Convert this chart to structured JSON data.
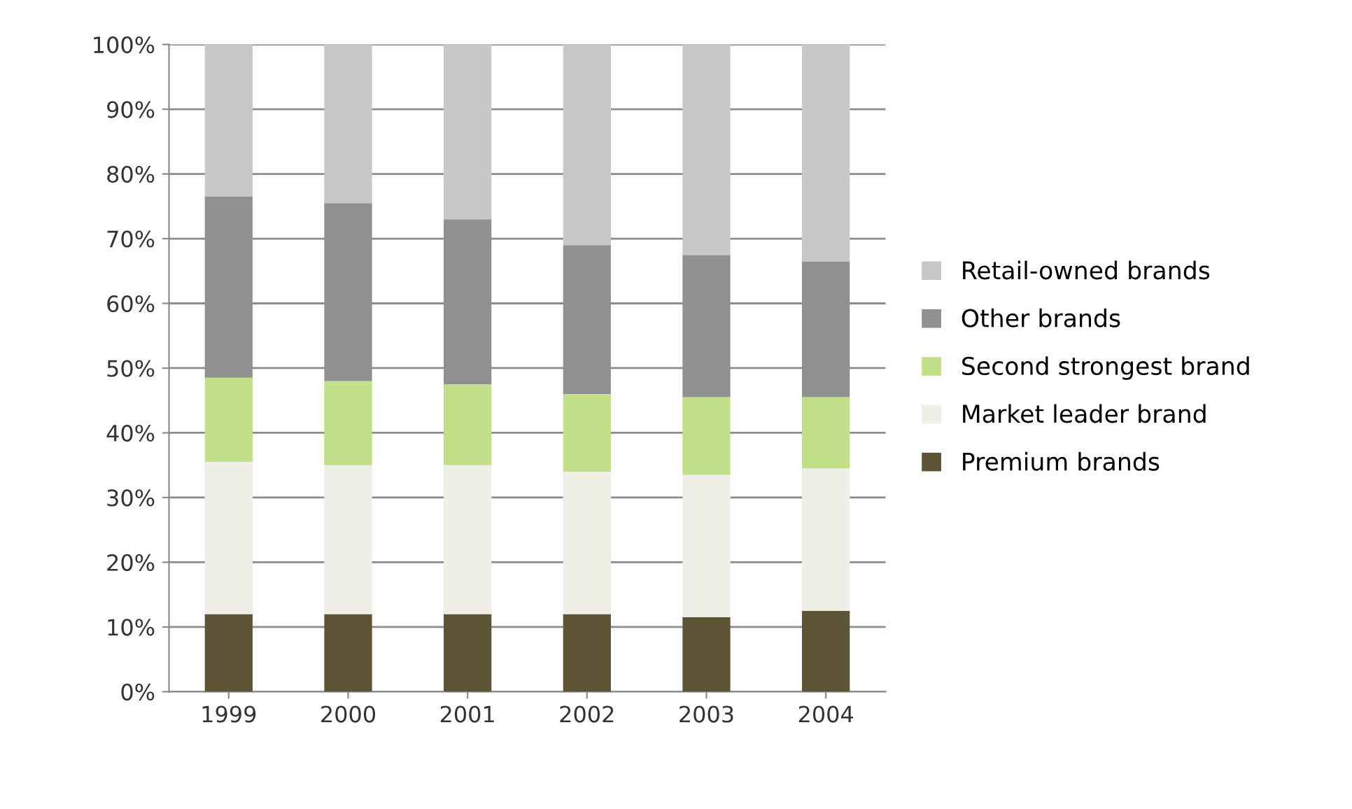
{
  "chart_data": {
    "type": "bar",
    "stacked": true,
    "categories": [
      "1999",
      "2000",
      "2001",
      "2002",
      "2003",
      "2004"
    ],
    "series": [
      {
        "name": "Premium brands",
        "color": "#5c5434",
        "values": [
          12,
          12,
          12,
          12,
          11.5,
          12.5
        ]
      },
      {
        "name": "Market leader brand",
        "color": "#efefe8",
        "values": [
          23.5,
          23,
          23,
          22,
          22,
          22
        ]
      },
      {
        "name": "Second strongest brand",
        "color": "#c2e08a",
        "values": [
          13,
          13,
          12.5,
          12,
          12,
          11
        ]
      },
      {
        "name": "Other brands",
        "color": "#909090",
        "values": [
          28,
          27.5,
          25.5,
          23,
          22,
          21
        ]
      },
      {
        "name": "Retail-owned brands",
        "color": "#c8c8c8",
        "values": [
          23.5,
          24.5,
          27,
          31,
          32.5,
          33.5
        ]
      }
    ],
    "ylim": [
      0,
      100
    ],
    "yticks": [
      {
        "value": 0,
        "label": "0%"
      },
      {
        "value": 10,
        "label": "10%"
      },
      {
        "value": 20,
        "label": "20%"
      },
      {
        "value": 30,
        "label": "30%"
      },
      {
        "value": 40,
        "label": "40%"
      },
      {
        "value": 50,
        "label": "50%"
      },
      {
        "value": 60,
        "label": "60%"
      },
      {
        "value": 70,
        "label": "70%"
      },
      {
        "value": 80,
        "label": "80%"
      },
      {
        "value": 90,
        "label": "90%"
      },
      {
        "value": 100,
        "label": "100%"
      }
    ],
    "grid": "y",
    "legend": "right"
  }
}
